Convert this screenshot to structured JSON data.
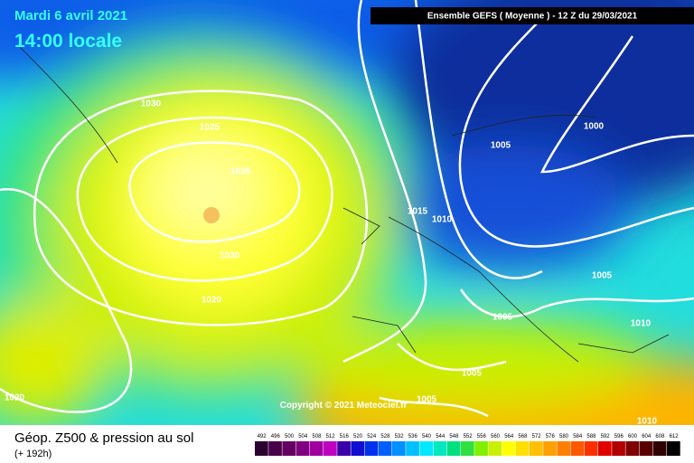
{
  "header": {
    "date": "Mardi 6 avril 2021",
    "time": "14:00 locale",
    "run": "Ensemble GEFS  ( Moyenne )  - 12 Z du 29/03/2021"
  },
  "isobar_labels": [
    "1030",
    "1025",
    "1035",
    "1030",
    "1020",
    "1015",
    "1010",
    "1005",
    "1000",
    "1005",
    "1005",
    "1005",
    "1005",
    "1010",
    "1010",
    "1020"
  ],
  "copyright": "Copyright © 2021 Meteociel.fr",
  "footer": {
    "title": "Géop. Z500 & pression au sol",
    "subtitle": "(+ 192h)"
  },
  "scale": [
    "492",
    "496",
    "500",
    "504",
    "508",
    "512",
    "516",
    "520",
    "524",
    "528",
    "532",
    "536",
    "540",
    "544",
    "548",
    "552",
    "556",
    "560",
    "564",
    "568",
    "572",
    "576",
    "580",
    "584",
    "588",
    "592",
    "596",
    "600",
    "604",
    "608",
    "612"
  ]
}
